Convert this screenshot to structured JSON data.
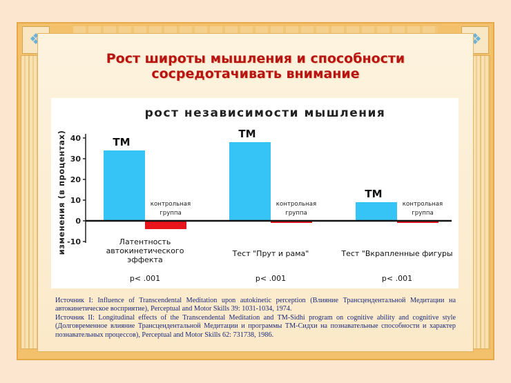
{
  "page": {
    "title_line1": "Рост широты мышления и способности",
    "title_line2": "сосредотачивать внимание",
    "source_1": "Источник I: Influence of Transcendental Meditation upon autokinetic perception (Влияние Трансцендентальной Медитации на автокинетическое восприятие), Perceptual and Motor Skills 39: 1031-1034, 1974.",
    "source_2": "Источник II: Longitudinal effects of the Transcendental Meditation and TM-Sidhi program on cognitive ability and cognitive style (Долговременное влияние Трансцендентальной Медитации и программы TM-Сидхи на познавательные способности и характер познавательных процессов), Perceptual and Motor Skills 62: 731738, 1986."
  },
  "colors": {
    "title": "#b81414",
    "tm_bar": "#35c4f5",
    "control_bar": "#e8141c",
    "source_text": "#1a2a7a",
    "frame": "#f3c06b"
  },
  "icons": [
    "ornament-corner-icon",
    "ornament-corner-icon"
  ],
  "chart_data": {
    "type": "bar",
    "title": "рост независимости мышления",
    "ylabel": "изменения (в процентах)",
    "xlabel": "",
    "ylim": [
      -10,
      40
    ],
    "yticks": [
      40,
      30,
      20,
      10,
      0,
      -10
    ],
    "categories": [
      [
        "Латентность",
        "автокинетического",
        "эффекта"
      ],
      [
        "Тест \"Прут и рама\""
      ],
      [
        "Тест \"Вкрапленные фигуры"
      ]
    ],
    "series": [
      {
        "name": "ТМ",
        "values": [
          34,
          38,
          9
        ]
      },
      {
        "name": "контрольная группа",
        "values": [
          -4,
          -1,
          -1
        ]
      }
    ],
    "bar_labels": [
      "ТМ",
      "ТМ",
      "ТМ"
    ],
    "control_labels": [
      [
        "контрольная",
        "группа"
      ],
      [
        "контрольная",
        "группа"
      ],
      [
        "контрольная",
        "группа"
      ]
    ],
    "p_values": [
      "p< .001",
      "p< .001",
      "p< .001"
    ],
    "grid": false,
    "legend": "none"
  }
}
